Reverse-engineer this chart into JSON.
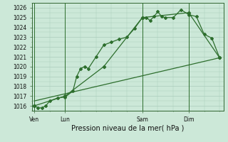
{
  "background_color": "#cce8d8",
  "grid_color": "#aaccbb",
  "line_color": "#2d6e2d",
  "title": "Pression niveau de la mer( hPa )",
  "ylabel_ticks": [
    1016,
    1017,
    1018,
    1019,
    1020,
    1021,
    1022,
    1023,
    1024,
    1025,
    1026
  ],
  "ylim": [
    1015.5,
    1026.5
  ],
  "xtick_labels": [
    "Ven",
    "Lun",
    "Sam",
    "Dim"
  ],
  "xtick_positions": [
    0,
    4,
    14,
    20
  ],
  "xlim": [
    -0.3,
    24.5
  ],
  "series1_x": [
    0,
    0.5,
    1.0,
    1.5,
    2.0,
    3.0,
    4.0,
    5.0,
    5.5,
    6.0,
    6.5,
    7.0,
    8.0,
    9.0,
    10.0,
    11.0,
    12.0,
    13.0,
    14.0,
    14.5,
    15.0,
    15.5,
    16.0,
    16.5,
    17.0,
    18.0,
    19.0,
    20.0,
    21.0,
    22.0,
    23.0,
    24.0
  ],
  "series1_y": [
    1016.0,
    1015.8,
    1015.8,
    1016.0,
    1016.5,
    1016.8,
    1016.9,
    1017.5,
    1019.0,
    1019.8,
    1020.0,
    1019.8,
    1021.0,
    1022.2,
    1022.5,
    1022.8,
    1023.0,
    1023.9,
    1025.0,
    1025.0,
    1024.7,
    1025.1,
    1025.6,
    1025.1,
    1025.0,
    1025.0,
    1025.8,
    1025.3,
    1025.1,
    1023.3,
    1022.9,
    1020.9
  ],
  "series2_x": [
    0,
    4,
    9,
    14,
    20,
    24
  ],
  "series2_y": [
    1016.0,
    1017.0,
    1020.0,
    1025.0,
    1025.5,
    1020.9
  ],
  "series3_x": [
    0,
    24
  ],
  "series3_y": [
    1016.5,
    1020.9
  ],
  "vline_positions": [
    0,
    4,
    14,
    20
  ],
  "vline_color": "#2d6e2d",
  "title_fontsize": 7,
  "tick_fontsize": 5.5
}
